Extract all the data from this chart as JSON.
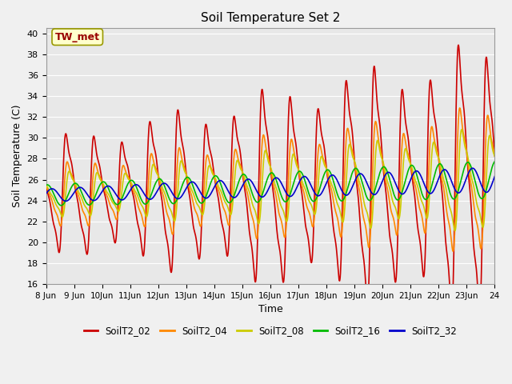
{
  "title": "Soil Temperature Set 2",
  "xlabel": "Time",
  "ylabel": "Soil Temperature (C)",
  "ylim": [
    16,
    40.5
  ],
  "yticks": [
    16,
    18,
    20,
    22,
    24,
    26,
    28,
    30,
    32,
    34,
    36,
    38,
    40
  ],
  "annotation": "TW_met",
  "series_names": [
    "SoilT2_02",
    "SoilT2_04",
    "SoilT2_08",
    "SoilT2_16",
    "SoilT2_32"
  ],
  "series_colors": [
    "#cc0000",
    "#ff8800",
    "#cccc00",
    "#00bb00",
    "#0000cc"
  ],
  "linewidth": 1.2,
  "bg_color": "#e8e8e8",
  "grid_color": "#ffffff",
  "fig_color": "#f0f0f0",
  "xtick_labels": [
    "8 Jun",
    "9 Jun",
    "10Jun",
    "11Jun",
    "12Jun",
    "13Jun",
    "14Jun",
    "15Jun",
    "16Jun",
    "17Jun",
    "18Jun",
    "19Jun",
    "20Jun",
    "21Jun",
    "22Jun",
    "23Jun",
    "24"
  ],
  "start_day": 8,
  "end_day": 24
}
